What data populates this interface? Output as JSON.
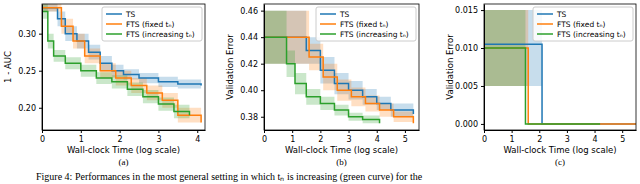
{
  "caption": "Figure 4: Performances in the most general setting in which tₙ is increasing (green curve) for the",
  "chart_data": [
    {
      "type": "line",
      "title": "(a)",
      "x_label": "Wall-clock Time (log scale)",
      "y_label": "1 - AUC",
      "xlim": [
        0,
        4.2
      ],
      "xticks": [
        0,
        1,
        2,
        3,
        4
      ],
      "ylim": [
        0.17,
        0.34
      ],
      "yticks": [
        {
          "value": 0.2,
          "label": "0.20"
        },
        0.25,
        {
          "value": 0.3,
          "label": "0.30"
        }
      ],
      "legend": "upper-right",
      "line_style": "step",
      "series": [
        {
          "name": "TS",
          "color": "#1f77b4",
          "x": [
            0,
            0.4,
            0.6,
            0.9,
            1.2,
            1.5,
            1.8,
            2.1,
            2.5,
            3.0,
            3.5,
            4.1
          ],
          "values": [
            0.335,
            0.32,
            0.3,
            0.29,
            0.275,
            0.26,
            0.25,
            0.245,
            0.24,
            0.235,
            0.232,
            0.23
          ],
          "lower": [
            0.33,
            0.31,
            0.29,
            0.28,
            0.265,
            0.25,
            0.242,
            0.238,
            0.233,
            0.228,
            0.226,
            0.224
          ],
          "upper": [
            0.34,
            0.33,
            0.31,
            0.3,
            0.285,
            0.27,
            0.258,
            0.252,
            0.247,
            0.242,
            0.238,
            0.236
          ]
        },
        {
          "name": "FTS (fixed tₙ)",
          "color": "#ff7f0e",
          "x": [
            0,
            0.5,
            0.8,
            1.1,
            1.5,
            1.9,
            2.3,
            2.7,
            3.1,
            3.5,
            4.1
          ],
          "values": [
            0.335,
            0.31,
            0.29,
            0.27,
            0.25,
            0.24,
            0.23,
            0.22,
            0.21,
            0.19,
            0.18
          ],
          "lower": [
            0.33,
            0.3,
            0.28,
            0.26,
            0.24,
            0.23,
            0.22,
            0.21,
            0.2,
            0.18,
            0.172
          ],
          "upper": [
            0.34,
            0.32,
            0.3,
            0.28,
            0.26,
            0.25,
            0.24,
            0.23,
            0.22,
            0.2,
            0.19
          ]
        },
        {
          "name": "FTS (increasing tₙ)",
          "color": "#2ca02c",
          "x": [
            0,
            0.15,
            0.3,
            0.6,
            1.0,
            1.4,
            1.8,
            2.2,
            2.6,
            3.0,
            3.4,
            3.8
          ],
          "values": [
            0.33,
            0.29,
            0.27,
            0.26,
            0.25,
            0.24,
            0.235,
            0.225,
            0.215,
            0.205,
            0.195,
            0.19
          ],
          "lower": [
            0.32,
            0.28,
            0.262,
            0.252,
            0.242,
            0.232,
            0.226,
            0.216,
            0.206,
            0.196,
            0.186,
            0.18
          ],
          "upper": [
            0.34,
            0.3,
            0.278,
            0.268,
            0.258,
            0.248,
            0.244,
            0.234,
            0.224,
            0.214,
            0.204,
            0.2
          ]
        }
      ]
    },
    {
      "type": "line",
      "title": "(b)",
      "x_label": "Wall-clock Time (log scale)",
      "y_label": "Validation Error",
      "xlim": [
        0,
        5.5
      ],
      "xticks": [
        0,
        1,
        2,
        3,
        4,
        5
      ],
      "ylim": [
        0.37,
        0.465
      ],
      "yticks": [
        0.38,
        {
          "value": 0.4,
          "label": "0.40"
        },
        0.42,
        0.44,
        0.46
      ],
      "legend": "upper-right",
      "line_style": "step",
      "series": [
        {
          "name": "TS",
          "color": "#1f77b4",
          "x": [
            0,
            1.2,
            1.5,
            2.0,
            2.5,
            3.0,
            3.5,
            4.0,
            4.5,
            5.3
          ],
          "values": [
            0.44,
            0.44,
            0.43,
            0.415,
            0.405,
            0.4,
            0.395,
            0.39,
            0.385,
            0.382
          ],
          "lower": [
            0.42,
            0.42,
            0.42,
            0.405,
            0.397,
            0.393,
            0.389,
            0.385,
            0.38,
            0.378
          ],
          "upper": [
            0.46,
            0.46,
            0.44,
            0.425,
            0.413,
            0.407,
            0.401,
            0.395,
            0.39,
            0.386
          ]
        },
        {
          "name": "FTS (fixed tₙ)",
          "color": "#ff7f0e",
          "x": [
            0,
            1.3,
            1.6,
            2.1,
            2.6,
            3.1,
            3.6,
            4.1,
            4.6,
            5.3
          ],
          "values": [
            0.44,
            0.44,
            0.425,
            0.41,
            0.4,
            0.395,
            0.39,
            0.385,
            0.38,
            0.375
          ],
          "lower": [
            0.42,
            0.42,
            0.415,
            0.4,
            0.392,
            0.388,
            0.384,
            0.38,
            0.376,
            0.372
          ],
          "upper": [
            0.46,
            0.46,
            0.435,
            0.42,
            0.408,
            0.402,
            0.396,
            0.39,
            0.384,
            0.378
          ]
        },
        {
          "name": "FTS (increasing tₙ)",
          "color": "#2ca02c",
          "x": [
            0,
            0.6,
            0.8,
            1.1,
            1.5,
            2.0,
            2.5,
            3.0,
            3.5,
            4.1
          ],
          "values": [
            0.44,
            0.44,
            0.42,
            0.405,
            0.395,
            0.39,
            0.385,
            0.38,
            0.378,
            0.375
          ],
          "lower": [
            0.42,
            0.42,
            0.41,
            0.397,
            0.389,
            0.385,
            0.381,
            0.377,
            0.375,
            0.373
          ],
          "upper": [
            0.46,
            0.46,
            0.43,
            0.413,
            0.401,
            0.395,
            0.389,
            0.383,
            0.381,
            0.377
          ]
        }
      ]
    },
    {
      "type": "line",
      "title": "(c)",
      "x_label": "Wall-clock Time (log scale)",
      "y_label": "Validation Error",
      "xlim": [
        0,
        5.5
      ],
      "xticks": [
        0,
        1,
        2,
        3,
        4,
        5
      ],
      "ylim": [
        -0.0008,
        0.0158
      ],
      "yticks": [
        {
          "value": 0,
          "label": "0.000"
        },
        {
          "value": 0.005,
          "label": "0.005"
        },
        {
          "value": 0.01,
          "label": "0.010"
        },
        {
          "value": 0.015,
          "label": "0.015"
        }
      ],
      "legend": "upper-right",
      "line_style": "step",
      "series": [
        {
          "name": "TS",
          "color": "#1f77b4",
          "x": [
            0,
            1.7,
            2.1,
            5.5
          ],
          "values": [
            0.0105,
            0.0105,
            0,
            0
          ],
          "lower": [
            0.005,
            0.005,
            0,
            0
          ],
          "upper": [
            0.015,
            0.015,
            0,
            0
          ]
        },
        {
          "name": "FTS (fixed tₙ)",
          "color": "#ff7f0e",
          "x": [
            0,
            1.4,
            1.6,
            5.5
          ],
          "values": [
            0.01,
            0.01,
            0,
            0
          ],
          "lower": [
            0.005,
            0.005,
            0,
            0
          ],
          "upper": [
            0.015,
            0.015,
            0,
            0
          ]
        },
        {
          "name": "FTS (increasing tₙ)",
          "color": "#2ca02c",
          "x": [
            0,
            0.4,
            1.3,
            1.5,
            4.2
          ],
          "values": [
            0.01,
            0.01,
            0.01,
            0,
            0
          ],
          "lower": [
            0.005,
            0.005,
            0.005,
            0,
            0
          ],
          "upper": [
            0.015,
            0.015,
            0.015,
            0,
            0
          ]
        }
      ]
    }
  ]
}
